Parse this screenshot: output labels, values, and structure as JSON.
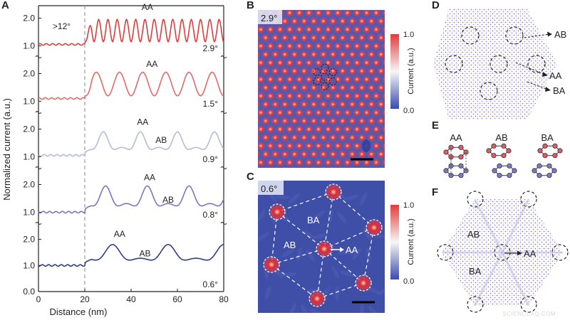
{
  "panel_labels": {
    "A": "A",
    "B": "B",
    "C": "C",
    "D": "D",
    "E": "E",
    "F": "F"
  },
  "chart_data": {
    "type": "line",
    "xlabel": "Distance (nm)",
    "ylabel": "Normalized current (a.u.)",
    "xlim": [
      0,
      80
    ],
    "x_ticks": [
      "0",
      "20",
      "40",
      "60",
      "80"
    ],
    "y_ticks": [
      "0.0",
      "1.0",
      "2.0"
    ],
    "grid": false,
    "dashed_line_x": 20,
    "threshold_label": ">12°",
    "panels": [
      {
        "angle": "2.9°",
        "color": "#e23b3b",
        "baseline": 1.05,
        "period_nm": 4.0,
        "amplitude": 0.8,
        "labels": [
          {
            "text": "AA",
            "x": 47,
            "y": 2.3
          }
        ]
      },
      {
        "angle": "1.5°",
        "color": "#e86868",
        "baseline": 1.1,
        "period_nm": 10.0,
        "amplitude": 0.85,
        "labels": [
          {
            "text": "AA",
            "x": 49,
            "y": 2.25
          }
        ]
      },
      {
        "angle": "0.9°",
        "color": "#b8b8dc",
        "baseline": 1.05,
        "period_nm": 16.0,
        "amplitude": 0.75,
        "labels": [
          {
            "text": "AA",
            "x": 45,
            "y": 2.15
          },
          {
            "text": "AB",
            "x": 53,
            "y": 1.5
          }
        ]
      },
      {
        "angle": "0.8°",
        "color": "#7878bb",
        "baseline": 1.0,
        "period_nm": 18.0,
        "amplitude": 0.85,
        "labels": [
          {
            "text": "AA",
            "x": 48,
            "y": 2.15
          },
          {
            "text": "AB",
            "x": 56,
            "y": 1.35
          }
        ]
      },
      {
        "angle": "0.6°",
        "color": "#2c3e8c",
        "baseline": 1.0,
        "period_nm": 24.0,
        "amplitude": 0.7,
        "labels": [
          {
            "text": "AA",
            "x": 35,
            "y": 2.1
          },
          {
            "text": "AB",
            "x": 46,
            "y": 1.35
          }
        ]
      }
    ]
  },
  "panel_b": {
    "angle": "2.9°",
    "cbar_title": "Current (a.u.)",
    "cbar_max": "1.0",
    "cbar_min": "0.0"
  },
  "panel_c": {
    "angle": "0.6°",
    "cbar_title": "Current (a.u.)",
    "cbar_max": "1.0",
    "cbar_min": "0.0",
    "label_ba": "BA",
    "label_ab": "AB",
    "label_aa": "AA"
  },
  "panel_d": {
    "label_ab": "AB",
    "label_aa": "AA",
    "label_ba": "BA"
  },
  "panel_e": {
    "label_aa": "AA",
    "label_ab": "AB",
    "label_ba": "BA"
  },
  "panel_f": {
    "label_ab": "AB",
    "label_ba": "BA",
    "label_aa": "AA"
  },
  "watermark": "SCIENCEAQ.COM",
  "colors": {
    "red": "#e23b3b",
    "blue": "#3a4bb0",
    "stm_bg": "#4a5ab8",
    "stm_bg_dark": "#3a4aa0"
  }
}
